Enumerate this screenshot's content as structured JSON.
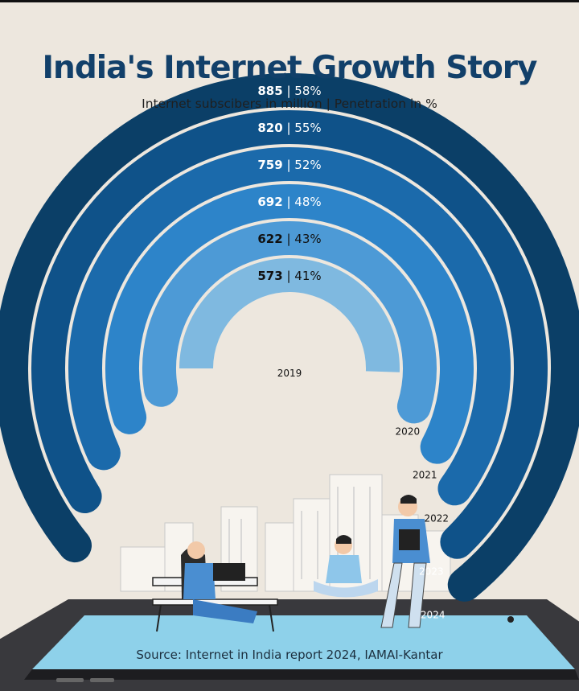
{
  "title": "India's Internet Growth Story",
  "subtitle": "Internet subscibers in million | Penetration in %",
  "source": "Source: Internet in India report 2024, IAMAI-Kantar",
  "colors": {
    "background": "#ede7de",
    "title": "#12406a",
    "arcs": [
      "#7fb9e0",
      "#4d9ad6",
      "#2d84c9",
      "#1b6aab",
      "#0f5289",
      "#0b3f67"
    ]
  },
  "chart_data": {
    "type": "radial-bar",
    "title": "India's Internet Growth Story",
    "subtitle": "Internet subscibers in million | Penetration in %",
    "series": [
      {
        "year": "2019",
        "subscribers": 573,
        "penetration": "41%"
      },
      {
        "year": "2020",
        "subscribers": 622,
        "penetration": "43%"
      },
      {
        "year": "2021",
        "subscribers": 692,
        "penetration": "48%"
      },
      {
        "year": "2022",
        "subscribers": 759,
        "penetration": "52%"
      },
      {
        "year": "2023",
        "subscribers": 820,
        "penetration": "55%"
      },
      {
        "year": "2024",
        "subscribers": 885,
        "penetration": "58%"
      }
    ]
  }
}
